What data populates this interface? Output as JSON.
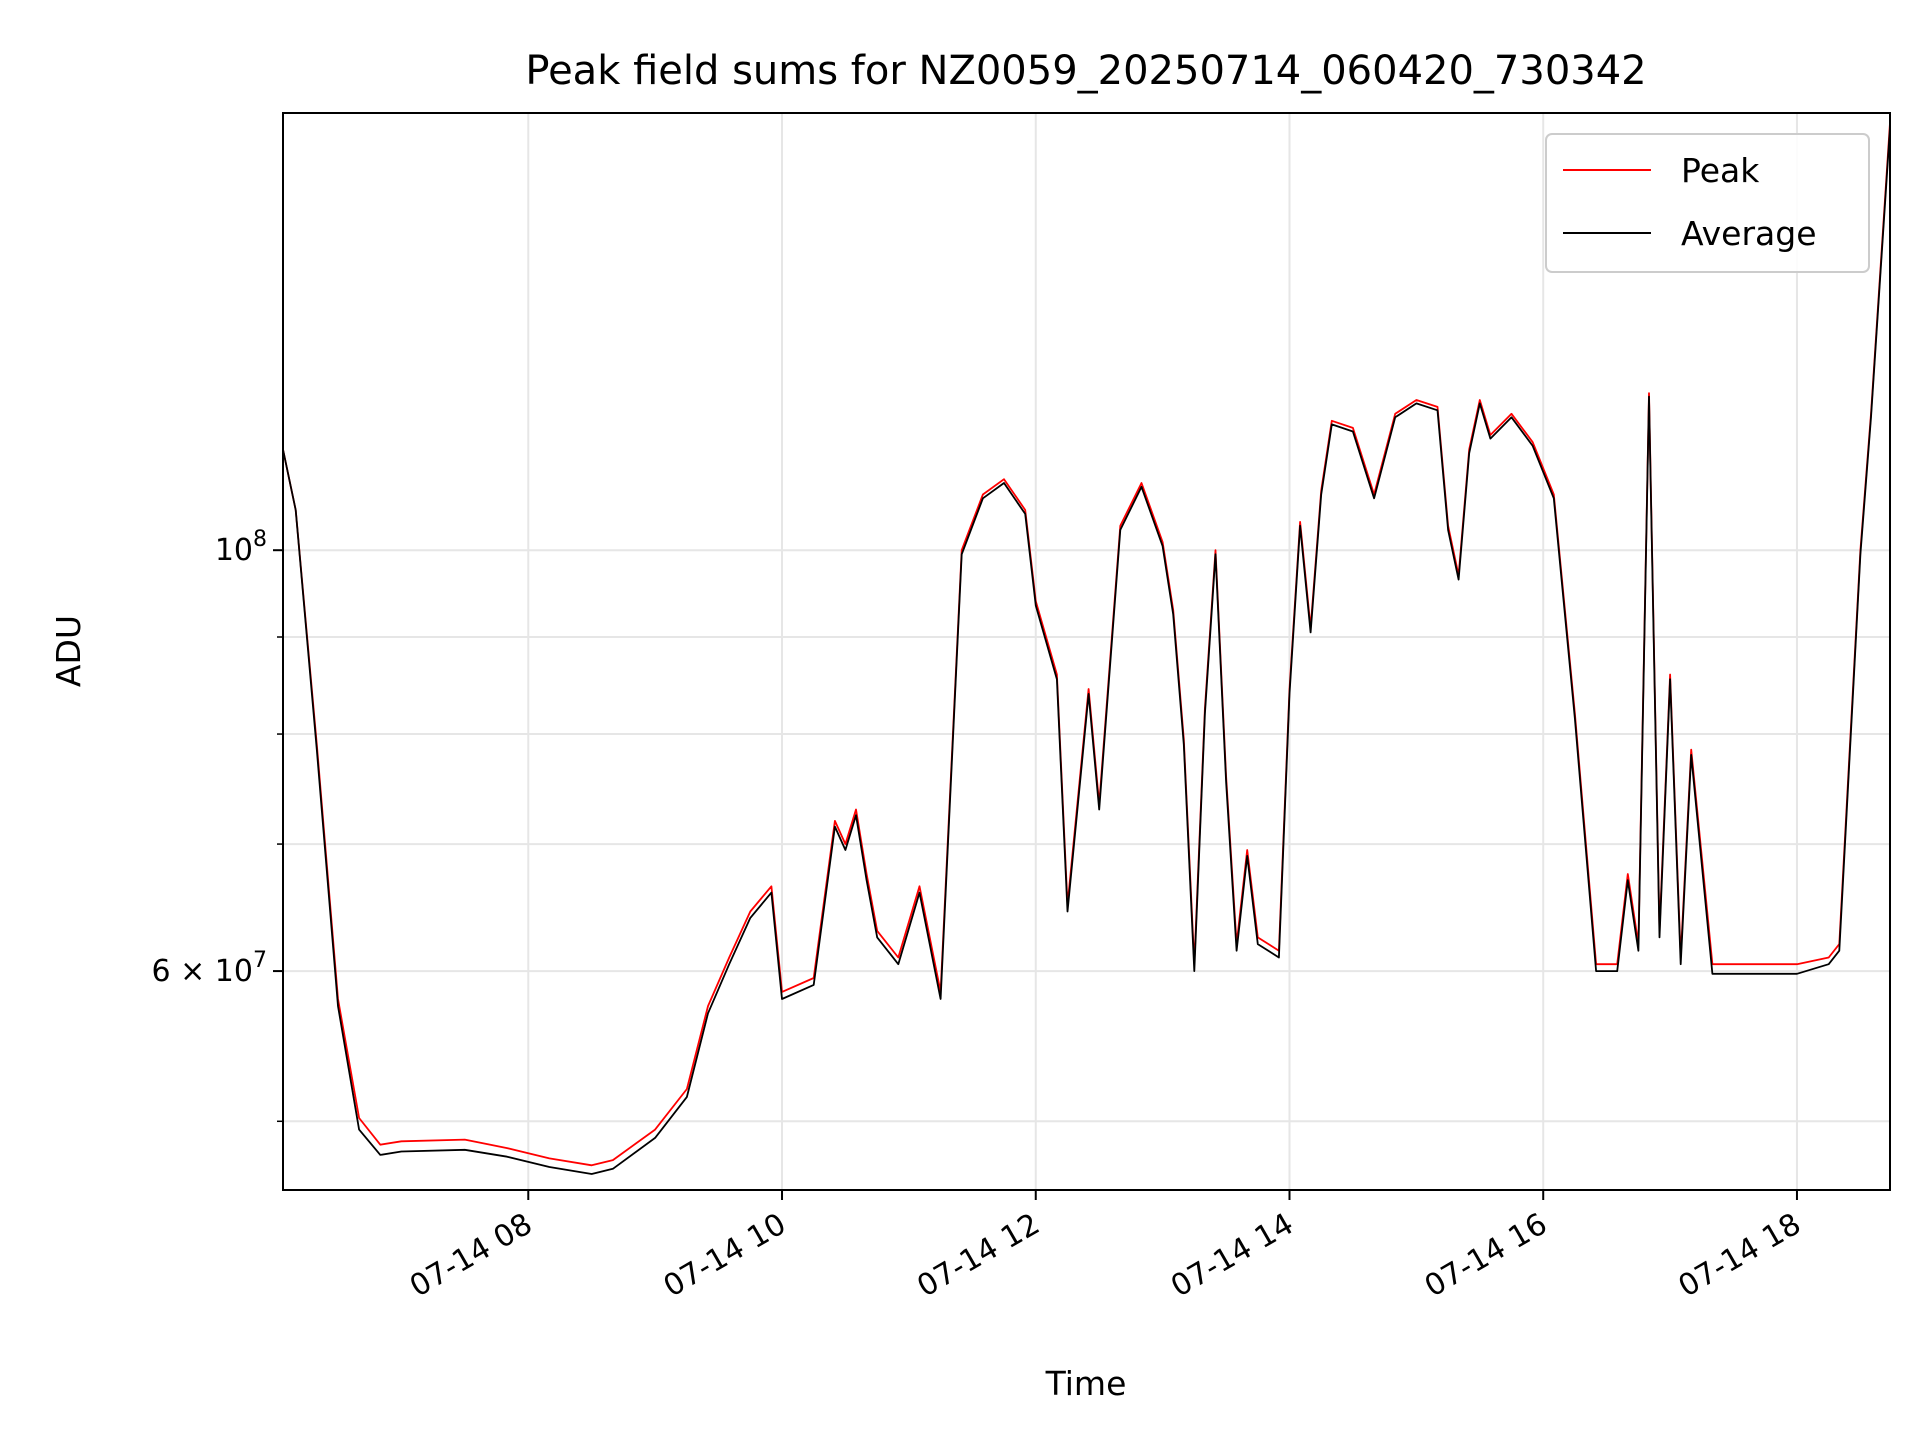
{
  "chart_data": {
    "type": "line",
    "title": "Peak field sums for NZ0059_20250714_060420_730342",
    "xlabel": "Time",
    "ylabel": "ADU",
    "yscale": "log",
    "ylim": [
      46000000,
      170000000
    ],
    "xlim": [
      "2025-07-14 06:04",
      "2025-07-14 18:44"
    ],
    "grid": true,
    "legend_position": "top-right",
    "x_ticks": [
      "07-14 08",
      "07-14 10",
      "07-14 12",
      "07-14 14",
      "07-14 16",
      "07-14 18"
    ],
    "y_ticks": [
      "10^8",
      "6 × 10^7"
    ],
    "x": [
      "2025-07-14 06:04",
      "2025-07-14 06:10",
      "2025-07-14 06:20",
      "2025-07-14 06:30",
      "2025-07-14 06:40",
      "2025-07-14 06:50",
      "2025-07-14 07:00",
      "2025-07-14 07:30",
      "2025-07-14 07:50",
      "2025-07-14 08:10",
      "2025-07-14 08:30",
      "2025-07-14 08:40",
      "2025-07-14 09:00",
      "2025-07-14 09:15",
      "2025-07-14 09:25",
      "2025-07-14 09:35",
      "2025-07-14 09:45",
      "2025-07-14 09:55",
      "2025-07-14 10:00",
      "2025-07-14 10:15",
      "2025-07-14 10:25",
      "2025-07-14 10:30",
      "2025-07-14 10:35",
      "2025-07-14 10:40",
      "2025-07-14 10:45",
      "2025-07-14 10:55",
      "2025-07-14 11:05",
      "2025-07-14 11:15",
      "2025-07-14 11:25",
      "2025-07-14 11:35",
      "2025-07-14 11:45",
      "2025-07-14 11:55",
      "2025-07-14 12:00",
      "2025-07-14 12:10",
      "2025-07-14 12:15",
      "2025-07-14 12:25",
      "2025-07-14 12:30",
      "2025-07-14 12:40",
      "2025-07-14 12:50",
      "2025-07-14 13:00",
      "2025-07-14 13:05",
      "2025-07-14 13:10",
      "2025-07-14 13:15",
      "2025-07-14 13:20",
      "2025-07-14 13:25",
      "2025-07-14 13:30",
      "2025-07-14 13:35",
      "2025-07-14 13:40",
      "2025-07-14 13:45",
      "2025-07-14 13:55",
      "2025-07-14 14:00",
      "2025-07-14 14:05",
      "2025-07-14 14:10",
      "2025-07-14 14:15",
      "2025-07-14 14:20",
      "2025-07-14 14:30",
      "2025-07-14 14:40",
      "2025-07-14 14:50",
      "2025-07-14 15:00",
      "2025-07-14 15:10",
      "2025-07-14 15:15",
      "2025-07-14 15:20",
      "2025-07-14 15:25",
      "2025-07-14 15:30",
      "2025-07-14 15:35",
      "2025-07-14 15:45",
      "2025-07-14 15:55",
      "2025-07-14 16:05",
      "2025-07-14 16:15",
      "2025-07-14 16:25",
      "2025-07-14 16:35",
      "2025-07-14 16:40",
      "2025-07-14 16:45",
      "2025-07-14 16:50",
      "2025-07-14 16:55",
      "2025-07-14 17:00",
      "2025-07-14 17:05",
      "2025-07-14 17:10",
      "2025-07-14 17:20",
      "2025-07-14 17:40",
      "2025-07-14 18:00",
      "2025-07-14 18:15",
      "2025-07-14 18:20",
      "2025-07-14 18:30",
      "2025-07-14 18:35",
      "2025-07-14 18:44"
    ],
    "series": [
      {
        "name": "Peak",
        "color": "#ff0000",
        "values": [
          113000000,
          105000000,
          79000000,
          58000000,
          50200000,
          48600000,
          48800000,
          48900000,
          48400000,
          47800000,
          47400000,
          47700000,
          49500000,
          52000000,
          57500000,
          61000000,
          64500000,
          66500000,
          58500000,
          59500000,
          72000000,
          70000000,
          73000000,
          67500000,
          63000000,
          61000000,
          66500000,
          58500000,
          100000000,
          107000000,
          109000000,
          105000000,
          94000000,
          86000000,
          65000000,
          84500000,
          73500000,
          103000000,
          108500000,
          101000000,
          93000000,
          79500000,
          60500000,
          82500000,
          100000000,
          76000000,
          62000000,
          69500000,
          62500000,
          61500000,
          84500000,
          103500000,
          91000000,
          107500000,
          117000000,
          116000000,
          107000000,
          118000000,
          120000000,
          119000000,
          103000000,
          97000000,
          113000000,
          120000000,
          115000000,
          118000000,
          114000000,
          107000000,
          82000000,
          60500000,
          60500000,
          67500000,
          62000000,
          121000000,
          63000000,
          86000000,
          61000000,
          78500000,
          60500000,
          60500000,
          60500000,
          61000000,
          62000000,
          100000000,
          118000000,
          168000000
        ]
      },
      {
        "name": "Average",
        "color": "#000000",
        "values": [
          113000000,
          105000000,
          78500000,
          57500000,
          49500000,
          48000000,
          48200000,
          48300000,
          47900000,
          47300000,
          46900000,
          47200000,
          49000000,
          51500000,
          57000000,
          60500000,
          64000000,
          66000000,
          58000000,
          59000000,
          71500000,
          69500000,
          72500000,
          67000000,
          62500000,
          60500000,
          66000000,
          58000000,
          99500000,
          106500000,
          108500000,
          104500000,
          93500000,
          85500000,
          64500000,
          84000000,
          73000000,
          102500000,
          108000000,
          100500000,
          92500000,
          79000000,
          60000000,
          82000000,
          99500000,
          75500000,
          61500000,
          69000000,
          62000000,
          61000000,
          84000000,
          103000000,
          90500000,
          107000000,
          116500000,
          115500000,
          106500000,
          117500000,
          119500000,
          118500000,
          102500000,
          96500000,
          112500000,
          119500000,
          114500000,
          117500000,
          113500000,
          106500000,
          81500000,
          60000000,
          60000000,
          67000000,
          61500000,
          120500000,
          62500000,
          85500000,
          60500000,
          78000000,
          59800000,
          59800000,
          59800000,
          60500000,
          61500000,
          99500000,
          117500000,
          167000000
        ]
      }
    ]
  }
}
